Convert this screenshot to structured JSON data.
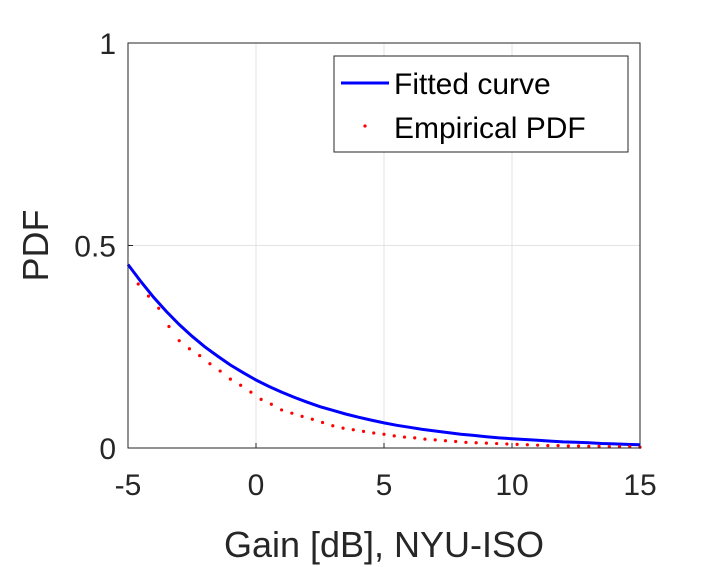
{
  "chart_data": {
    "type": "line",
    "xlabel": "Gain [dB], NYU-ISO",
    "ylabel": "PDF",
    "xlim": [
      -5,
      15
    ],
    "ylim": [
      0,
      1
    ],
    "xticks": [
      -5,
      0,
      5,
      10,
      15
    ],
    "yticks": [
      0,
      0.5,
      1
    ],
    "xtick_labels": [
      "-5",
      "0",
      "5",
      "10",
      "15"
    ],
    "ytick_labels": [
      "0",
      "0.5",
      "1"
    ],
    "grid": true,
    "legend": {
      "placement": "top-right"
    },
    "series": [
      {
        "name": "Fitted curve",
        "style": "line",
        "color": "#0000ff",
        "x": [
          -5,
          -4.5,
          -4,
          -3.5,
          -3,
          -2.5,
          -2,
          -1.5,
          -1,
          -0.5,
          0,
          0.5,
          1,
          1.5,
          2,
          2.5,
          3,
          3.5,
          4,
          4.5,
          5,
          5.5,
          6,
          6.5,
          7,
          7.5,
          8,
          8.5,
          9,
          9.5,
          10,
          10.5,
          11,
          11.5,
          12,
          12.5,
          13,
          13.5,
          14,
          14.5,
          15
        ],
        "y": [
          0.453,
          0.411,
          0.372,
          0.337,
          0.305,
          0.276,
          0.25,
          0.227,
          0.205,
          0.186,
          0.168,
          0.152,
          0.138,
          0.125,
          0.113,
          0.102,
          0.093,
          0.084,
          0.076,
          0.069,
          0.062,
          0.056,
          0.051,
          0.046,
          0.042,
          0.038,
          0.034,
          0.031,
          0.028,
          0.025,
          0.023,
          0.021,
          0.019,
          0.017,
          0.015,
          0.014,
          0.013,
          0.011,
          0.01,
          0.009,
          0.008
        ]
      },
      {
        "name": "Empirical PDF",
        "style": "points",
        "color": "#ff0000",
        "x": [
          -4.6,
          -4.2,
          -3.8,
          -3.4,
          -3.0,
          -2.6,
          -2.2,
          -1.8,
          -1.4,
          -1.0,
          -0.6,
          -0.2,
          0.2,
          0.6,
          1.0,
          1.4,
          1.8,
          2.2,
          2.6,
          3.0,
          3.4,
          3.8,
          4.2,
          4.6,
          5.0,
          5.4,
          5.8,
          6.2,
          6.6,
          7.0,
          7.4,
          7.8,
          8.2,
          8.6,
          9.0,
          9.4,
          9.8,
          10.2,
          10.6,
          11.0,
          11.4,
          11.8,
          12.2,
          12.6,
          13.0,
          13.4,
          13.8,
          14.2,
          14.6,
          15.0
        ],
        "y": [
          0.405,
          0.375,
          0.345,
          0.3,
          0.265,
          0.245,
          0.228,
          0.208,
          0.19,
          0.17,
          0.155,
          0.138,
          0.12,
          0.108,
          0.094,
          0.086,
          0.078,
          0.071,
          0.063,
          0.055,
          0.049,
          0.045,
          0.041,
          0.037,
          0.034,
          0.03,
          0.027,
          0.025,
          0.022,
          0.02,
          0.018,
          0.016,
          0.014,
          0.013,
          0.012,
          0.011,
          0.01,
          0.009,
          0.008,
          0.007,
          0.006,
          0.006,
          0.005,
          0.005,
          0.004,
          0.004,
          0.003,
          0.003,
          0.003,
          0.002
        ]
      }
    ]
  }
}
